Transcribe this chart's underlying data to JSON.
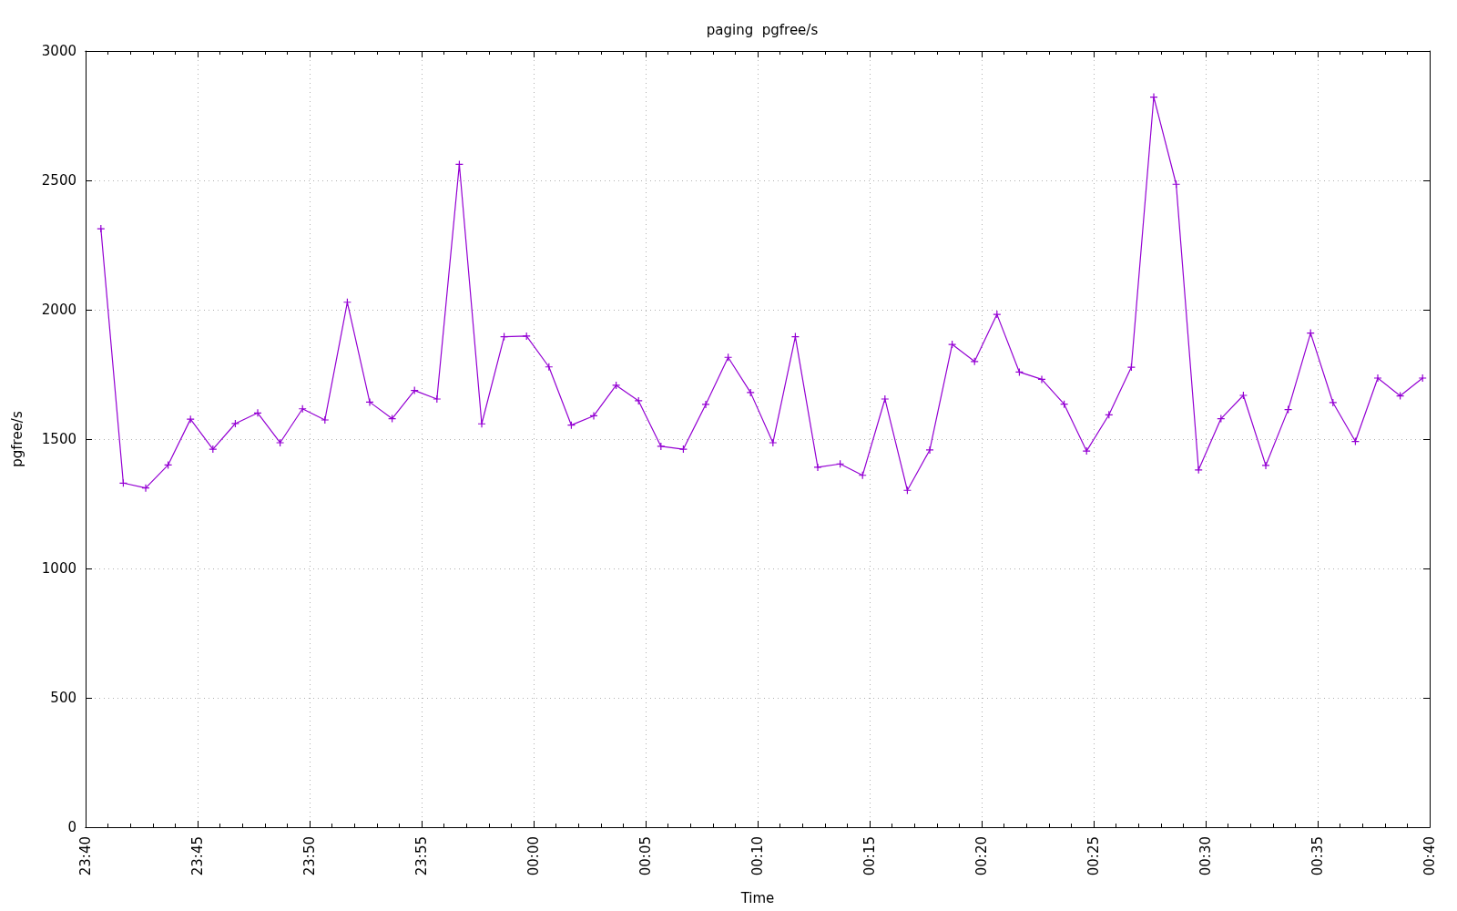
{
  "chart_data": {
    "type": "line",
    "title": "paging  pgfree/s",
    "xlabel": "Time",
    "ylabel": "pgfree/s",
    "x": [
      "2000-01-01T23:40:41",
      "2000-01-01T23:41:41",
      "2000-01-01T23:42:41",
      "2000-01-01T23:43:41",
      "2000-01-01T23:44:41",
      "2000-01-01T23:45:41",
      "2000-01-01T23:46:41",
      "2000-01-01T23:47:41",
      "2000-01-01T23:48:41",
      "2000-01-01T23:49:41",
      "2000-01-01T23:50:41",
      "2000-01-01T23:51:41",
      "2000-01-01T23:52:41",
      "2000-01-01T23:53:41",
      "2000-01-01T23:54:41",
      "2000-01-01T23:55:41",
      "2000-01-01T23:56:41",
      "2000-01-01T23:57:41",
      "2000-01-01T23:58:41",
      "2000-01-01T23:59:41",
      "2000-01-02T00:00:41",
      "2000-01-02T00:01:41",
      "2000-01-02T00:02:41",
      "2000-01-02T00:03:41",
      "2000-01-02T00:04:41",
      "2000-01-02T00:05:41",
      "2000-01-02T00:06:41",
      "2000-01-02T00:07:41",
      "2000-01-02T00:08:41",
      "2000-01-02T00:09:41",
      "2000-01-02T00:10:41",
      "2000-01-02T00:11:41",
      "2000-01-02T00:12:41",
      "2000-01-02T00:13:41",
      "2000-01-02T00:14:41",
      "2000-01-02T00:15:41",
      "2000-01-02T00:16:41",
      "2000-01-02T00:17:41",
      "2000-01-02T00:18:41",
      "2000-01-02T00:19:41",
      "2000-01-02T00:20:41",
      "2000-01-02T00:21:41",
      "2000-01-02T00:22:41",
      "2000-01-02T00:23:41",
      "2000-01-02T00:24:41",
      "2000-01-02T00:25:41",
      "2000-01-02T00:26:41",
      "2000-01-02T00:27:41",
      "2000-01-02T00:28:41",
      "2000-01-02T00:29:41",
      "2000-01-02T00:30:41",
      "2000-01-02T00:31:41",
      "2000-01-02T00:32:41",
      "2000-01-02T00:33:41",
      "2000-01-02T00:34:41",
      "2000-01-02T00:35:41",
      "2000-01-02T00:36:41",
      "2000-01-02T00:37:41",
      "2000-01-02T00:38:41",
      "2000-01-02T00:39:41"
    ],
    "values": [
      2313,
      1330,
      1311,
      1400,
      1577,
      1461,
      1560,
      1601,
      1486,
      1617,
      1574,
      2029,
      1643,
      1579,
      1688,
      1655,
      2562,
      1559,
      1896,
      1898,
      1779,
      1554,
      1590,
      1708,
      1648,
      1472,
      1461,
      1634,
      1816,
      1680,
      1486,
      1896,
      1391,
      1404,
      1360,
      1655,
      1302,
      1458,
      1866,
      1800,
      1982,
      1759,
      1731,
      1635,
      1454,
      1594,
      1778,
      2822,
      2485,
      1381,
      1579,
      1669,
      1398,
      1614,
      1910,
      1641,
      1491,
      1736,
      1667,
      1736
    ],
    "color": "#9400d3",
    "marker": "cross",
    "line_style": "solid",
    "xlim": [
      "2000-01-01T23:40",
      "2000-01-02T00:40"
    ],
    "xticks": [
      {
        "value": "2000-01-01T23:40",
        "label": "23:40"
      },
      {
        "value": "2000-01-01T23:41",
        "label": null
      },
      {
        "value": "2000-01-01T23:42",
        "label": null
      },
      {
        "value": "2000-01-01T23:43",
        "label": null
      },
      {
        "value": "2000-01-01T23:44",
        "label": null
      },
      {
        "value": "2000-01-01T23:45",
        "label": "23:45"
      },
      {
        "value": "2000-01-01T23:46",
        "label": null
      },
      {
        "value": "2000-01-01T23:47",
        "label": null
      },
      {
        "value": "2000-01-01T23:48",
        "label": null
      },
      {
        "value": "2000-01-01T23:49",
        "label": null
      },
      {
        "value": "2000-01-01T23:50",
        "label": "23:50"
      },
      {
        "value": "2000-01-01T23:51",
        "label": null
      },
      {
        "value": "2000-01-01T23:52",
        "label": null
      },
      {
        "value": "2000-01-01T23:53",
        "label": null
      },
      {
        "value": "2000-01-01T23:54",
        "label": null
      },
      {
        "value": "2000-01-01T23:55",
        "label": "23:55"
      },
      {
        "value": "2000-01-01T23:56",
        "label": null
      },
      {
        "value": "2000-01-01T23:57",
        "label": null
      },
      {
        "value": "2000-01-01T23:58",
        "label": null
      },
      {
        "value": "2000-01-01T23:59",
        "label": null
      },
      {
        "value": "2000-01-02T00:00",
        "label": "00:00"
      },
      {
        "value": "2000-01-02T00:01",
        "label": null
      },
      {
        "value": "2000-01-02T00:02",
        "label": null
      },
      {
        "value": "2000-01-02T00:03",
        "label": null
      },
      {
        "value": "2000-01-02T00:04",
        "label": null
      },
      {
        "value": "2000-01-02T00:05",
        "label": "00:05"
      },
      {
        "value": "2000-01-02T00:06",
        "label": null
      },
      {
        "value": "2000-01-02T00:07",
        "label": null
      },
      {
        "value": "2000-01-02T00:08",
        "label": null
      },
      {
        "value": "2000-01-02T00:09",
        "label": null
      },
      {
        "value": "2000-01-02T00:10",
        "label": "00:10"
      },
      {
        "value": "2000-01-02T00:11",
        "label": null
      },
      {
        "value": "2000-01-02T00:12",
        "label": null
      },
      {
        "value": "2000-01-02T00:13",
        "label": null
      },
      {
        "value": "2000-01-02T00:14",
        "label": null
      },
      {
        "value": "2000-01-02T00:15",
        "label": "00:15"
      },
      {
        "value": "2000-01-02T00:16",
        "label": null
      },
      {
        "value": "2000-01-02T00:17",
        "label": null
      },
      {
        "value": "2000-01-02T00:18",
        "label": null
      },
      {
        "value": "2000-01-02T00:19",
        "label": null
      },
      {
        "value": "2000-01-02T00:20",
        "label": "00:20"
      },
      {
        "value": "2000-01-02T00:21",
        "label": null
      },
      {
        "value": "2000-01-02T00:22",
        "label": null
      },
      {
        "value": "2000-01-02T00:23",
        "label": null
      },
      {
        "value": "2000-01-02T00:24",
        "label": null
      },
      {
        "value": "2000-01-02T00:25",
        "label": "00:25"
      },
      {
        "value": "2000-01-02T00:26",
        "label": null
      },
      {
        "value": "2000-01-02T00:27",
        "label": null
      },
      {
        "value": "2000-01-02T00:28",
        "label": null
      },
      {
        "value": "2000-01-02T00:29",
        "label": null
      },
      {
        "value": "2000-01-02T00:30",
        "label": "00:30"
      },
      {
        "value": "2000-01-02T00:31",
        "label": null
      },
      {
        "value": "2000-01-02T00:32",
        "label": null
      },
      {
        "value": "2000-01-02T00:33",
        "label": null
      },
      {
        "value": "2000-01-02T00:34",
        "label": null
      },
      {
        "value": "2000-01-02T00:35",
        "label": "00:35"
      },
      {
        "value": "2000-01-02T00:36",
        "label": null
      },
      {
        "value": "2000-01-02T00:37",
        "label": null
      },
      {
        "value": "2000-01-02T00:38",
        "label": null
      },
      {
        "value": "2000-01-02T00:39",
        "label": null
      },
      {
        "value": "2000-01-02T00:40",
        "label": "00:40"
      }
    ],
    "ylim": [
      0,
      3000
    ],
    "yticks": [
      0,
      500,
      1000,
      1500,
      2000,
      2500,
      3000
    ],
    "grid": true
  }
}
